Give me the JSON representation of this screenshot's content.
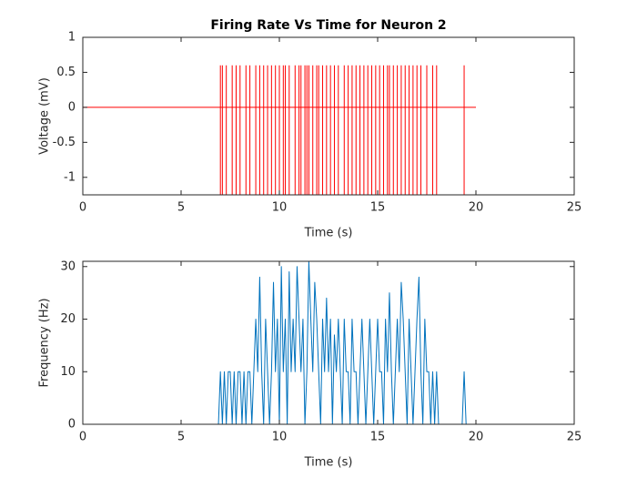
{
  "chart_data": [
    {
      "type": "spike_train",
      "title": "Firing Rate Vs Time for Neuron 2",
      "xlabel": "Time (s)",
      "ylabel": "Voltage (mV)",
      "color": "#ff0000",
      "x": [
        7.0,
        7.1,
        7.3,
        7.6,
        7.8,
        8.0,
        8.3,
        8.5,
        8.8,
        9.0,
        9.2,
        9.4,
        9.6,
        9.8,
        10.0,
        10.2,
        10.3,
        10.5,
        10.8,
        11.0,
        11.1,
        11.3,
        11.4,
        11.5,
        11.7,
        11.9,
        12.0,
        12.2,
        12.4,
        12.6,
        12.8,
        13.0,
        13.3,
        13.5,
        13.7,
        13.9,
        14.1,
        14.3,
        14.5,
        14.7,
        14.9,
        15.1,
        15.3,
        15.5,
        15.6,
        15.8,
        16.0,
        16.2,
        16.4,
        16.6,
        16.8,
        17.0,
        17.2,
        17.5,
        17.8,
        18.0,
        19.4
      ],
      "peak": 0.6,
      "trough": -1.25,
      "baseline": 0,
      "baseline_x": [
        0,
        20
      ],
      "xlim": [
        0,
        25
      ],
      "xticks": [
        0,
        5,
        10,
        15,
        20,
        25
      ],
      "ylim": [
        -1.25,
        1
      ],
      "yticks": [
        -1,
        -0.5,
        0,
        0.5,
        1
      ]
    },
    {
      "type": "line",
      "xlabel": "Time (s)",
      "ylabel": "Frequency (Hz)",
      "color": "#0072bd",
      "x": [
        0,
        6.9,
        7.0,
        7.1,
        7.2,
        7.3,
        7.4,
        7.5,
        7.6,
        7.7,
        7.8,
        7.9,
        8.0,
        8.1,
        8.2,
        8.3,
        8.4,
        8.5,
        8.6,
        8.7,
        8.8,
        8.9,
        9.0,
        9.1,
        9.2,
        9.3,
        9.4,
        9.5,
        9.6,
        9.7,
        9.8,
        9.9,
        10.0,
        10.1,
        10.2,
        10.3,
        10.4,
        10.5,
        10.6,
        10.7,
        10.8,
        10.9,
        11.0,
        11.1,
        11.2,
        11.3,
        11.4,
        11.5,
        11.6,
        11.7,
        11.8,
        11.9,
        12.0,
        12.1,
        12.2,
        12.3,
        12.4,
        12.5,
        12.6,
        12.7,
        12.8,
        12.9,
        13.0,
        13.1,
        13.2,
        13.3,
        13.4,
        13.5,
        13.6,
        13.7,
        13.8,
        13.9,
        14.0,
        14.1,
        14.2,
        14.3,
        14.4,
        14.5,
        14.6,
        14.7,
        14.8,
        14.9,
        15.0,
        15.1,
        15.2,
        15.3,
        15.4,
        15.5,
        15.6,
        15.7,
        15.8,
        15.9,
        16.0,
        16.1,
        16.2,
        16.3,
        16.4,
        16.5,
        16.6,
        16.7,
        16.8,
        16.9,
        17.0,
        17.1,
        17.2,
        17.3,
        17.4,
        17.5,
        17.6,
        17.7,
        17.8,
        17.9,
        18.0,
        18.1,
        19.3,
        19.4,
        19.5,
        20
      ],
      "values": [
        0,
        0,
        10,
        0,
        10,
        0,
        10,
        10,
        0,
        10,
        0,
        10,
        10,
        0,
        10,
        0,
        10,
        10,
        0,
        10,
        20,
        10,
        28,
        10,
        0,
        20,
        10,
        0,
        10,
        27,
        10,
        20,
        0,
        30,
        10,
        20,
        0,
        29,
        10,
        20,
        10,
        30,
        20,
        10,
        20,
        0,
        10,
        31,
        20,
        10,
        27,
        20,
        10,
        0,
        20,
        10,
        24,
        10,
        20,
        0,
        17,
        10,
        20,
        10,
        0,
        20,
        10,
        10,
        0,
        20,
        10,
        10,
        0,
        10,
        20,
        10,
        0,
        10,
        20,
        10,
        0,
        10,
        20,
        10,
        10,
        0,
        20,
        10,
        25,
        10,
        0,
        10,
        20,
        10,
        27,
        20,
        10,
        0,
        20,
        10,
        0,
        10,
        20,
        28,
        10,
        0,
        20,
        10,
        10,
        0,
        10,
        0,
        10,
        0,
        0,
        10,
        0,
        0
      ],
      "xlim": [
        0,
        25
      ],
      "xticks": [
        0,
        5,
        10,
        15,
        20,
        25
      ],
      "ylim": [
        0,
        31
      ],
      "yticks": [
        0,
        10,
        20,
        30
      ]
    }
  ]
}
